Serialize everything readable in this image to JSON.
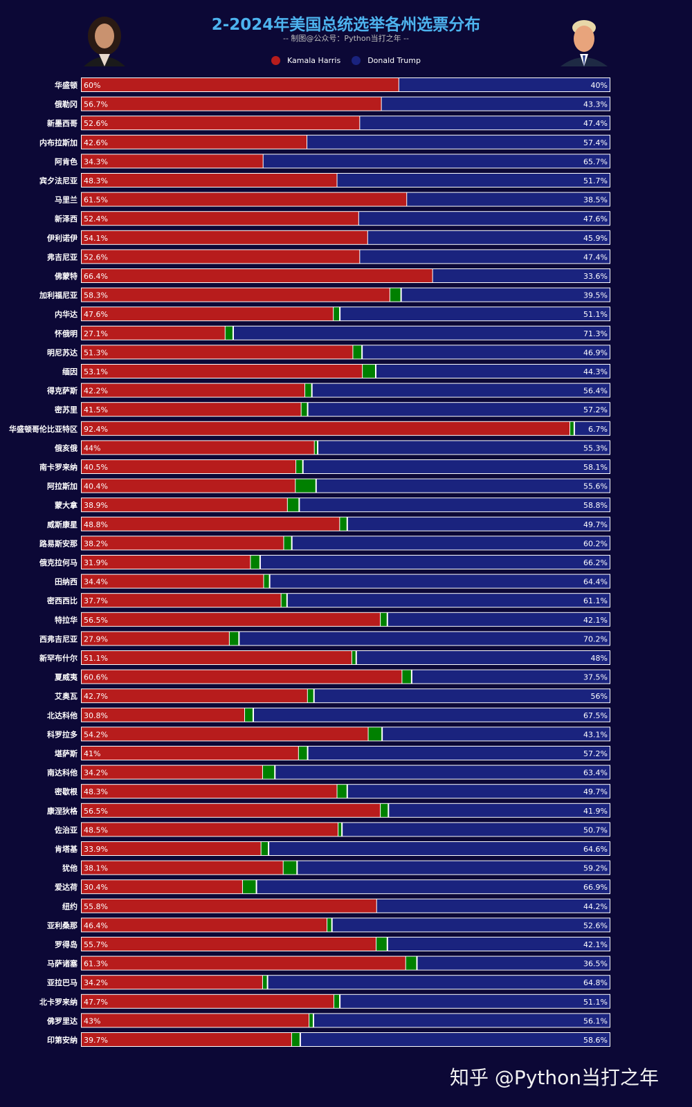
{
  "header": {
    "title": "2-2024年美国总统选举各州选票分布",
    "subtitle": "-- 制图@公众号：Python当打之年 --"
  },
  "watermark": "知乎 @Python当打之年",
  "colors": {
    "background": "#0c0836",
    "harris": "#b71c1c",
    "trump": "#1a237e",
    "other": "#008000",
    "title": "#4db3ee"
  },
  "portraits": {
    "left": "Kamala Harris photo",
    "right": "Donald Trump photo"
  },
  "chart_data": {
    "type": "bar",
    "orientation": "horizontal",
    "stacked": true,
    "title": "2-2024年美国总统选举各州选票分布",
    "subtitle": "-- 制图@公众号：Python当打之年 --",
    "legend_position": "top",
    "xlim": [
      0,
      100
    ],
    "grid": false,
    "categories": [
      "华盛顿",
      "俄勒冈",
      "新墨西哥",
      "内布拉斯加",
      "阿肯色",
      "宾夕法尼亚",
      "马里兰",
      "新泽西",
      "伊利诺伊",
      "弗吉尼亚",
      "佛蒙特",
      "加利福尼亚",
      "内华达",
      "怀俄明",
      "明尼苏达",
      "缅因",
      "得克萨斯",
      "密苏里",
      "华盛顿哥伦比亚特区",
      "俄亥俄",
      "南卡罗来纳",
      "阿拉斯加",
      "蒙大拿",
      "威斯康星",
      "路易斯安那",
      "俄克拉何马",
      "田纳西",
      "密西西比",
      "特拉华",
      "西弗吉尼亚",
      "新罕布什尔",
      "夏威夷",
      "艾奥瓦",
      "北达科他",
      "科罗拉多",
      "堪萨斯",
      "南达科他",
      "密歇根",
      "康涅狄格",
      "佐治亚",
      "肯塔基",
      "犹他",
      "爱达荷",
      "纽约",
      "亚利桑那",
      "罗得岛",
      "马萨诸塞",
      "亚拉巴马",
      "北卡罗来纳",
      "佛罗里达",
      "印第安纳"
    ],
    "series": [
      {
        "name": "Kamala Harris",
        "color": "#b71c1c",
        "values": [
          60,
          56.7,
          52.6,
          42.6,
          34.3,
          48.3,
          61.5,
          52.4,
          54.1,
          52.6,
          66.4,
          58.3,
          47.6,
          27.1,
          51.3,
          53.1,
          42.2,
          41.5,
          92.4,
          44,
          40.5,
          40.4,
          38.9,
          48.8,
          38.2,
          31.9,
          34.4,
          37.7,
          56.5,
          27.9,
          51.1,
          60.6,
          42.7,
          30.8,
          54.2,
          41,
          34.2,
          48.3,
          56.5,
          48.5,
          33.9,
          38.1,
          30.4,
          55.8,
          46.4,
          55.7,
          61.3,
          34.2,
          47.7,
          43,
          39.7
        ]
      },
      {
        "name": "Donald Trump",
        "color": "#1a237e",
        "values": [
          40,
          43.3,
          47.4,
          57.4,
          65.7,
          51.7,
          38.5,
          47.6,
          45.9,
          47.4,
          33.6,
          39.5,
          51.1,
          71.3,
          46.9,
          44.3,
          56.4,
          57.2,
          6.7,
          55.3,
          58.1,
          55.6,
          58.8,
          49.7,
          60.2,
          66.2,
          64.4,
          61.1,
          42.1,
          70.2,
          48,
          37.5,
          56,
          67.5,
          43.1,
          57.2,
          63.4,
          49.7,
          41.9,
          50.7,
          64.6,
          59.2,
          66.9,
          44.2,
          52.6,
          42.1,
          36.5,
          64.8,
          51.1,
          56.1,
          58.6
        ]
      }
    ]
  }
}
